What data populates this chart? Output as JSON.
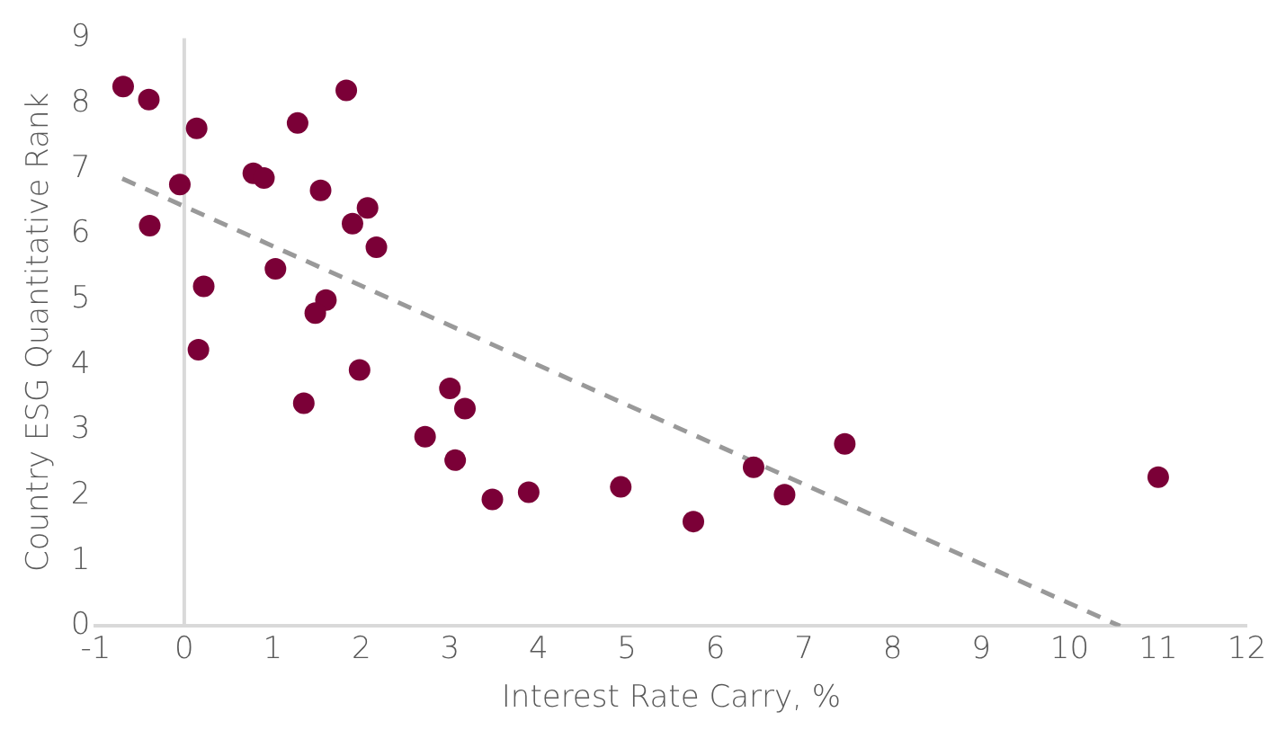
{
  "chart_data": {
    "type": "scatter",
    "xlabel": "Interest Rate Carry, %",
    "ylabel": "Country ESG Quantitative Rank",
    "x": [
      -0.69,
      -0.4,
      0.14,
      -0.05,
      -0.39,
      0.22,
      0.16,
      0.78,
      0.9,
      1.28,
      1.83,
      1.54,
      2.07,
      1.9,
      2.17,
      1.03,
      1.6,
      1.48,
      1.98,
      1.35,
      3.0,
      3.17,
      2.72,
      3.06,
      3.48,
      3.89,
      4.93,
      5.75,
      6.43,
      6.78,
      7.46,
      11.0
    ],
    "series": [
      {
        "color": "#7b0037",
        "values": [
          8.26,
          8.06,
          7.62,
          6.76,
          6.13,
          5.2,
          4.23,
          6.93,
          6.86,
          7.7,
          8.2,
          6.67,
          6.4,
          6.16,
          5.8,
          5.47,
          4.99,
          4.79,
          3.92,
          3.41,
          3.64,
          3.33,
          2.9,
          2.54,
          1.94,
          2.05,
          2.13,
          1.6,
          2.43,
          2.01,
          2.79,
          2.28
        ]
      },
      {
        "type": "line",
        "color": "#999999",
        "line_style": "dashed",
        "marker": "none",
        "x": [
          -0.7,
          10.57
        ],
        "values": [
          6.85,
          0
        ]
      }
    ],
    "marker": "circle",
    "xlim": [
      -1,
      12
    ],
    "xticks": [
      -1,
      0,
      1,
      2,
      3,
      4,
      5,
      6,
      7,
      8,
      9,
      10,
      11,
      12
    ],
    "ylim": [
      0,
      9
    ],
    "yticks": [
      0,
      1,
      2,
      3,
      4,
      5,
      6,
      7,
      8,
      9
    ],
    "grid": false,
    "legend": false,
    "ref_lines": [
      {
        "axis": "x",
        "value": 0,
        "color": "#d9d9d9"
      }
    ]
  }
}
